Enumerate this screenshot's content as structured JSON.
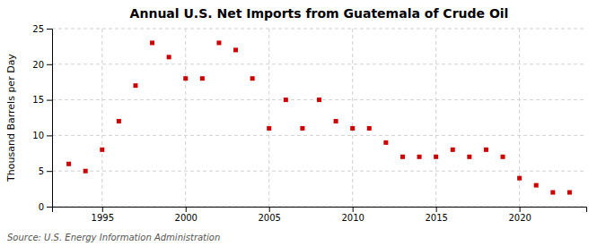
{
  "chart_data": {
    "type": "scatter",
    "title": "Annual U.S. Net Imports from Guatemala of Crude Oil",
    "ylabel": "Thousand Barrels per Day",
    "source": "Source: U.S. Energy Information Administration",
    "x": [
      1993,
      1994,
      1995,
      1996,
      1997,
      1998,
      1999,
      2000,
      2001,
      2002,
      2003,
      2004,
      2005,
      2006,
      2007,
      2008,
      2009,
      2010,
      2011,
      2012,
      2013,
      2014,
      2015,
      2016,
      2017,
      2018,
      2019,
      2020,
      2021,
      2022,
      2023
    ],
    "values": [
      6,
      5,
      8,
      12,
      17,
      23,
      21,
      18,
      18,
      23,
      22,
      18,
      11,
      15,
      11,
      15,
      12,
      11,
      11,
      9,
      7,
      7,
      7,
      8,
      7,
      8,
      7,
      4,
      3,
      2,
      2
    ],
    "color": "#cc0000",
    "marker": "square",
    "xlim": [
      1992,
      2024
    ],
    "xticks": [
      1995,
      2000,
      2005,
      2010,
      2015,
      2020
    ],
    "ylim": [
      0,
      25
    ],
    "yticks": [
      0,
      5,
      10,
      15,
      20,
      25
    ],
    "grid": true
  }
}
